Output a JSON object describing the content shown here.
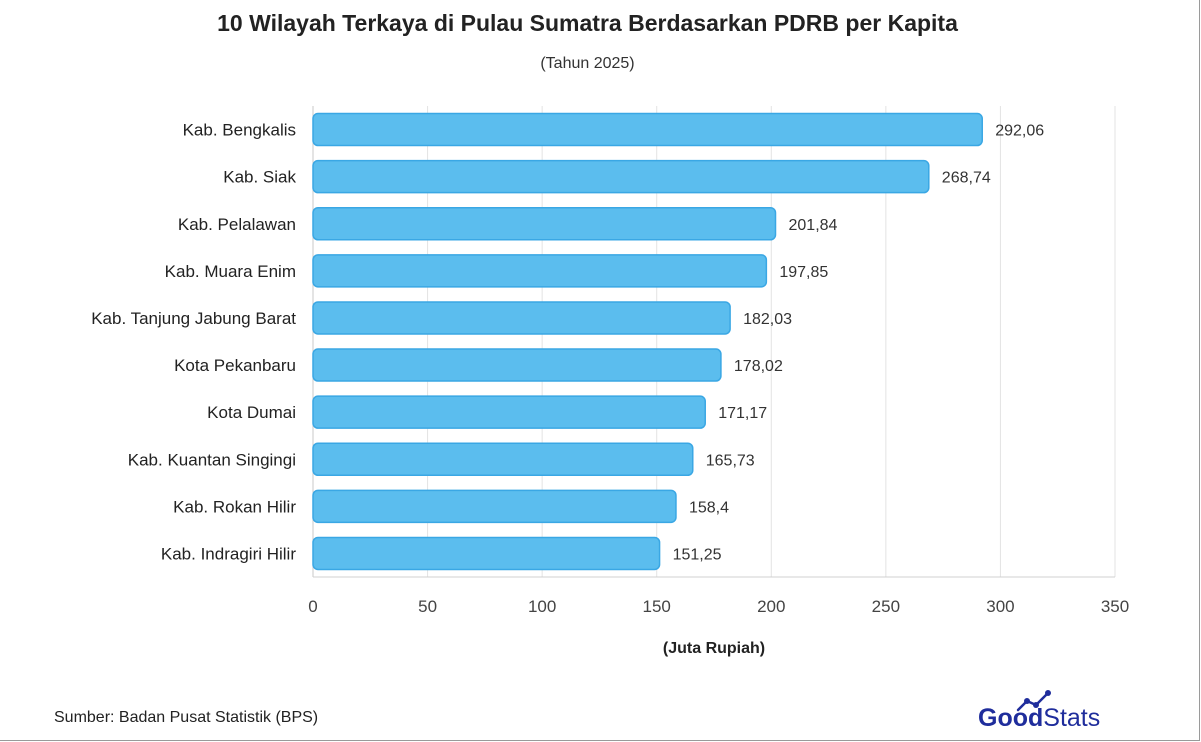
{
  "header": {
    "title": "10 Wilayah Terkaya di Pulau Sumatra Berdasarkan PDRB per Kapita",
    "subtitle": "(Tahun 2025)"
  },
  "footer": {
    "source": "Sumber: Badan Pusat Statistik (BPS)",
    "logo_bold": "Good",
    "logo_light": "Stats"
  },
  "colors": {
    "bar_fill": "#5bbdee",
    "bar_stroke": "#3aa7e4",
    "grid": "#e3e3e3",
    "logo": "#1f2d9c"
  },
  "chart_data": {
    "type": "bar",
    "orientation": "horizontal",
    "title": "10 Wilayah Terkaya di Pulau Sumatra Berdasarkan PDRB per Kapita",
    "subtitle": "(Tahun 2025)",
    "categories": [
      "Kab. Bengkalis",
      "Kab. Siak",
      "Kab. Pelalawan",
      "Kab. Muara Enim",
      "Kab. Tanjung Jabung Barat",
      "Kota Pekanbaru",
      "Kota Dumai",
      "Kab. Kuantan Singingi",
      "Kab. Rokan Hilir",
      "Kab. Indragiri Hilir"
    ],
    "values": [
      292.06,
      268.74,
      201.84,
      197.85,
      182.03,
      178.02,
      171.17,
      165.73,
      158.4,
      151.25
    ],
    "value_labels": [
      "292,06",
      "268,74",
      "201,84",
      "197,85",
      "182,03",
      "178,02",
      "171,17",
      "165,73",
      "158,4",
      "151,25"
    ],
    "xlabel": "(Juta Rupiah)",
    "ylabel": "",
    "xlim": [
      0,
      350
    ],
    "xticks": [
      0,
      50,
      100,
      150,
      200,
      250,
      300,
      350
    ],
    "grid": true,
    "legend": "none"
  }
}
